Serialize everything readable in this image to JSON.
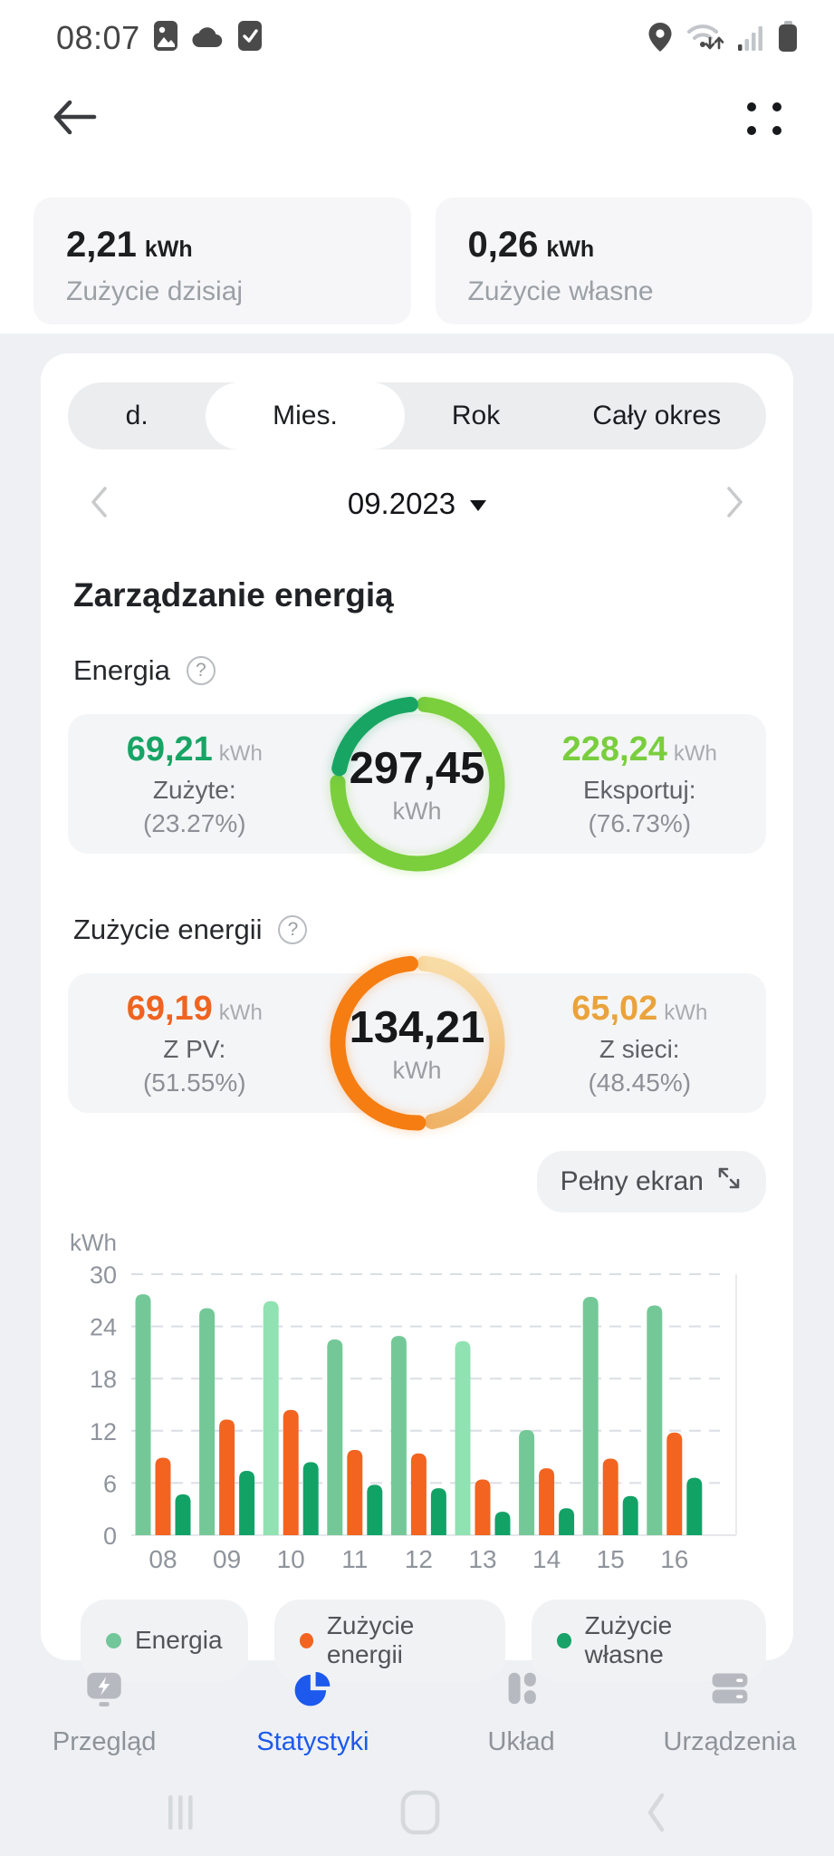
{
  "status_bar": {
    "time": "08:07"
  },
  "summary_cards": [
    {
      "value": "2,21",
      "unit": "kWh",
      "label": "Zużycie dzisiaj"
    },
    {
      "value": "0,26",
      "unit": "kWh",
      "label": "Zużycie własne"
    }
  ],
  "tabs": [
    {
      "label": "d.",
      "active": false
    },
    {
      "label": "Mies.",
      "active": true
    },
    {
      "label": "Rok",
      "active": false
    },
    {
      "label": "Cały okres",
      "active": false
    }
  ],
  "date_selector": {
    "value": "09.2023"
  },
  "section_title": "Zarządzanie energią",
  "energy": {
    "title": "Energia",
    "help_icon": "question-circle",
    "center_value": "297,45",
    "center_unit": "kWh",
    "left": {
      "value": "69,21",
      "unit": "kWh",
      "label": "Zużyte:",
      "percent": "(23.27%)",
      "color": "#17a464"
    },
    "right": {
      "value": "228,24",
      "unit": "kWh",
      "label": "Eksportuj:",
      "percent": "(76.73%)",
      "color": "#79ce3e"
    },
    "ring": {
      "gap_deg": 10,
      "segments": [
        {
          "name": "eksport",
          "pct": 76.73,
          "color": "#7bce3c",
          "glow": "#7bce3c55"
        },
        {
          "name": "zuzyte",
          "pct": 23.27,
          "color": "#18a563",
          "glow": "#18a56355"
        }
      ]
    }
  },
  "consumption": {
    "title": "Zużycie energii",
    "help_icon": "question-circle",
    "center_value": "134,21",
    "center_unit": "kWh",
    "left": {
      "value": "69,19",
      "unit": "kWh",
      "label": "Z PV:",
      "percent": "(51.55%)",
      "color": "#ef6420"
    },
    "right": {
      "value": "65,02",
      "unit": "kWh",
      "label": "Z sieci:",
      "percent": "(48.45%)",
      "color": "#eaa33c"
    },
    "ring": {
      "gap_deg": 10,
      "gradient": {
        "from": "#f8dca6",
        "to": "#f0b468"
      },
      "segments": [
        {
          "name": "z-sieci",
          "pct": 48.45,
          "color": "url(#grad-pale)",
          "glow": "#f0b46855"
        },
        {
          "name": "z-pv",
          "pct": 51.55,
          "color": "#f57d12",
          "glow": "#f57d1255"
        }
      ]
    }
  },
  "fullscreen_button": {
    "label": "Pełny ekran",
    "icon": "expand-arrows"
  },
  "chart_data": {
    "type": "bar",
    "title": "",
    "ylabel": "kWh",
    "ylim": [
      0,
      30
    ],
    "yticks": [
      0,
      6,
      12,
      18,
      24,
      30
    ],
    "grid": "dashed-horizontal",
    "legend_position": "bottom",
    "categories": [
      "08",
      "09",
      "10",
      "11",
      "12",
      "13",
      "14",
      "15",
      "16"
    ],
    "series": [
      {
        "name": "Energia",
        "color": "#74c898",
        "values": [
          27.7,
          26.1,
          26.9,
          22.5,
          22.9,
          22.3,
          12.1,
          27.4,
          26.4
        ],
        "point_colors": [
          null,
          null,
          "#90e2b2",
          null,
          null,
          "#90e2b2",
          null,
          null,
          null
        ]
      },
      {
        "name": "Zużycie energii",
        "color": "#f2641f",
        "values": [
          8.9,
          13.3,
          14.4,
          9.8,
          9.4,
          6.4,
          7.7,
          8.8,
          11.8
        ]
      },
      {
        "name": "Zużycie własne",
        "color": "#12a266",
        "values": [
          4.7,
          7.4,
          8.4,
          5.8,
          5.4,
          2.7,
          3.1,
          4.5,
          6.6
        ]
      }
    ]
  },
  "legend": [
    {
      "label": "Energia",
      "color": "#72c79a"
    },
    {
      "label": "Zużycie energii",
      "color": "#f2641f"
    },
    {
      "label": "Zużycie własne",
      "color": "#17a368"
    }
  ],
  "bottom_nav": [
    {
      "label": "Przegląd",
      "icon": "inverter-icon",
      "active": false
    },
    {
      "label": "Statystyki",
      "icon": "pie-chart-icon",
      "active": true
    },
    {
      "label": "Układ",
      "icon": "layout-icon",
      "active": false
    },
    {
      "label": "Urządzenia",
      "icon": "devices-icon",
      "active": false
    }
  ],
  "colors": {
    "accent_blue": "#1c59ec",
    "page_gray": "#eef0f3"
  }
}
